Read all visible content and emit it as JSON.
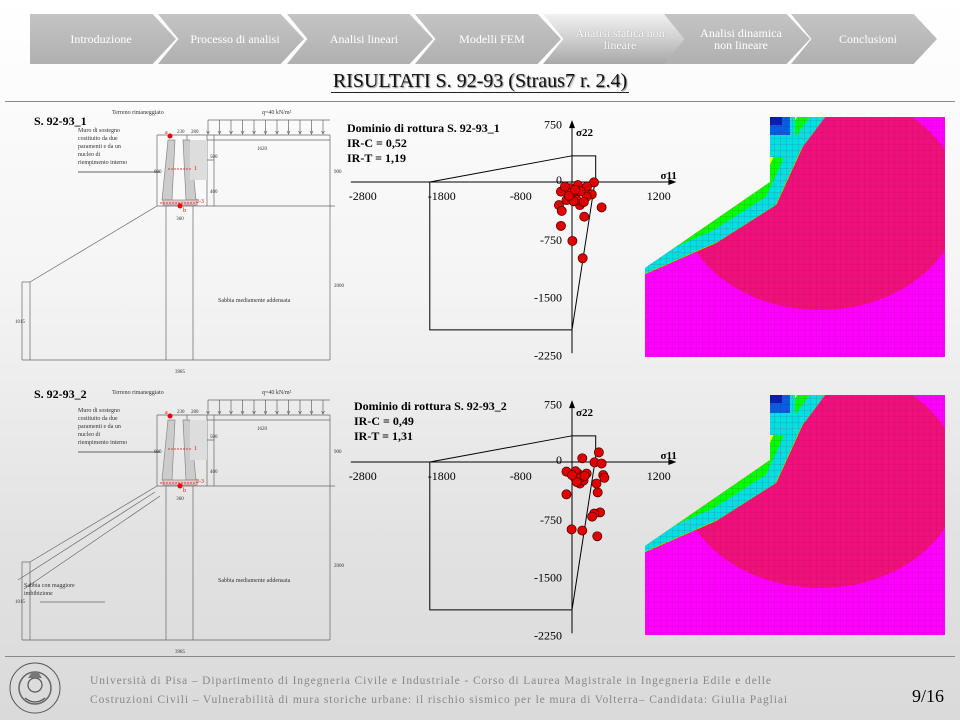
{
  "nav": {
    "items": [
      {
        "label": "Introduzione",
        "active": false
      },
      {
        "label": "Processo di analisi",
        "active": false
      },
      {
        "label": "Analisi lineari",
        "active": false
      },
      {
        "label": "Modelli FEM",
        "active": false
      },
      {
        "label": "Analisi statica non lineare",
        "active": true
      },
      {
        "label": "Analisi dinamica non lineare",
        "active": false
      },
      {
        "label": "Conclusioni",
        "active": false
      }
    ]
  },
  "title": "RISULTATI  S. 92-93 (Straus7 r. 2.4)",
  "sections": [
    {
      "label": "S. 92-93_1",
      "drawing": {
        "top_label": "Terreno rimaneggiato",
        "load": "q=40 kN/m²",
        "wall_note": [
          "Muro di sostegno",
          "costituito da due",
          "paramenti e da un",
          "nucleo di",
          "riempimento interno"
        ],
        "soil_upper_note": [],
        "soil": "Sabbia mediamente addensata",
        "dims": {
          "top1": "230",
          "top2": "280",
          "strip": "1620",
          "h1": "500",
          "h2": "400",
          "wall_h": "900",
          "right_h": "900",
          "base": "360",
          "total_h": "2000",
          "left_h": "1015",
          "total_w": "3985"
        },
        "points": {
          "a": "a",
          "b": "b",
          "p1": "1",
          "p23": "2-3"
        }
      },
      "chart_title": "Dominio di rottura S. 92-93_1",
      "irc": "IR-C = 0,52",
      "irt": "IR-T = 1,19"
    },
    {
      "label": "S. 92-93_2",
      "drawing": {
        "top_label": "Terreno rimaneggiato",
        "load": "q=40 kN/m²",
        "wall_note": [
          "Muro di sostegno",
          "costituito da due",
          "paramenti e da un",
          "nucleo di",
          "riempimento interno"
        ],
        "soil_upper_note": [
          "Sabbia con maggiore",
          "imbibizione"
        ],
        "soil": "Sabbia mediamente addensata",
        "dims": {
          "top1": "230",
          "top2": "280",
          "strip": "1620",
          "h1": "500",
          "h2": "400",
          "wall_h": "900",
          "right_h": "900",
          "base": "360",
          "total_h": "2000",
          "left_h": "1015",
          "total_w": "3985"
        },
        "points": {
          "a": "a",
          "b": "b",
          "p1": "1",
          "p23": "2-3"
        }
      },
      "chart_title": "Dominio di rottura S. 92-93_2",
      "irc": "IR-C = 0,49",
      "irt": "IR-T = 1,31"
    }
  ],
  "chart_data": [
    {
      "type": "scatter",
      "title": "Dominio di rottura S. 92-93_1",
      "xlabel": "σ11",
      "ylabel": "σ22",
      "x_ticks": [
        -2800,
        -1800,
        -800,
        1200
      ],
      "y_ticks": [
        750,
        0,
        -750,
        -1500,
        -2250
      ],
      "xlim": [
        -2800,
        1300
      ],
      "ylim": [
        -2250,
        750
      ],
      "grid": false,
      "domain_polygon": [
        [
          -1800,
          0
        ],
        [
          0,
          340
        ],
        [
          300,
          340
        ],
        [
          300,
          0
        ],
        [
          290,
          0
        ],
        [
          0,
          -1920
        ],
        [
          -1800,
          -1920
        ],
        [
          -1800,
          0
        ]
      ],
      "point_color": "#e00000",
      "points": [
        [
          278,
          -5
        ],
        [
          375,
          -330
        ],
        [
          155,
          -450
        ],
        [
          -140,
          -570
        ],
        [
          5,
          -765
        ],
        [
          135,
          -990
        ],
        [
          -140,
          -125
        ],
        [
          -165,
          -300
        ],
        [
          -130,
          -375
        ],
        [
          75,
          -40
        ],
        [
          190,
          -60
        ],
        [
          250,
          -160
        ],
        [
          15,
          -170
        ],
        [
          -25,
          -80
        ],
        [
          100,
          -300
        ],
        [
          -70,
          -235
        ],
        [
          60,
          -235
        ],
        [
          185,
          -190
        ],
        [
          20,
          -250
        ],
        [
          -40,
          -180
        ],
        [
          110,
          -120
        ],
        [
          40,
          -100
        ],
        [
          -90,
          -60
        ],
        [
          150,
          -260
        ]
      ]
    },
    {
      "type": "scatter",
      "title": "Dominio di rottura S. 92-93_2",
      "xlabel": "σ11",
      "ylabel": "σ22",
      "x_ticks": [
        -2800,
        -1800,
        -800,
        1200
      ],
      "y_ticks": [
        750,
        0,
        -750,
        -1500,
        -2250
      ],
      "xlim": [
        -2800,
        1300
      ],
      "ylim": [
        -2250,
        750
      ],
      "grid": false,
      "domain_polygon": [
        [
          -1800,
          0
        ],
        [
          0,
          340
        ],
        [
          300,
          340
        ],
        [
          300,
          0
        ],
        [
          290,
          0
        ],
        [
          0,
          -1920
        ],
        [
          -1800,
          -1920
        ],
        [
          -1800,
          0
        ]
      ],
      "point_color": "#e00000",
      "points": [
        [
          340,
          125
        ],
        [
          130,
          48
        ],
        [
          285,
          -5
        ],
        [
          375,
          -20
        ],
        [
          395,
          -170
        ],
        [
          410,
          -205
        ],
        [
          -70,
          -125
        ],
        [
          -70,
          -420
        ],
        [
          325,
          -395
        ],
        [
          310,
          -280
        ],
        [
          355,
          -655
        ],
        [
          280,
          -670
        ],
        [
          255,
          -710
        ],
        [
          -5,
          -875
        ],
        [
          130,
          -890
        ],
        [
          320,
          -965
        ],
        [
          35,
          -200
        ],
        [
          100,
          -280
        ],
        [
          185,
          -150
        ],
        [
          75,
          -150
        ],
        [
          145,
          -240
        ],
        [
          45,
          -120
        ],
        [
          110,
          -200
        ],
        [
          60,
          -260
        ],
        [
          0,
          -170
        ],
        [
          160,
          -180
        ]
      ]
    }
  ],
  "fem_colors": [
    "#ff00ff",
    "#f0107a",
    "#ff2020",
    "#ffff00",
    "#00ff00",
    "#00e0e0",
    "#0060e0",
    "#0020b0"
  ],
  "footer": {
    "line1": "Università di Pisa – Dipartimento di Ingegneria Civile e Industriale - Corso di Laurea Magistrale in Ingegneria Edile e delle",
    "line2": "Costruzioni Civili – Vulnerabilità di mura storiche urbane: il rischio sismico per le mura di Volterra– Candidata:  Giulia Pagliai",
    "page": "9/16",
    "seal_text": "IN SUPREMÆ DIGNITATIS 1343"
  }
}
